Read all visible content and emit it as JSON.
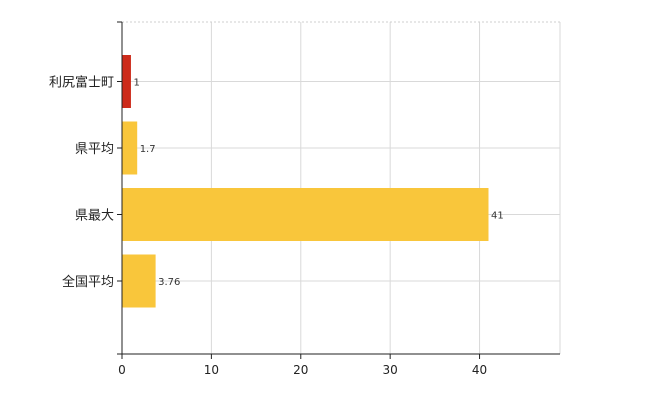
{
  "chart_data": {
    "type": "bar",
    "orientation": "horizontal",
    "categories": [
      "利尻富士町",
      "県平均",
      "県最大",
      "全国平均"
    ],
    "values": [
      1,
      1.7,
      41,
      3.76
    ],
    "value_labels": [
      "1",
      "1.7",
      "41",
      "3.76"
    ],
    "bar_colors": [
      "#cc2a1a",
      "#f9c63b",
      "#f9c63b",
      "#f9c63b"
    ],
    "xlim": [
      0,
      49
    ],
    "x_ticks": [
      0,
      10,
      20,
      30,
      40
    ],
    "x_tick_labels": [
      "0",
      "10",
      "20",
      "30",
      "40"
    ],
    "grid": true,
    "grid_style": "dashed-light",
    "title": "",
    "xlabel": "",
    "ylabel": ""
  }
}
